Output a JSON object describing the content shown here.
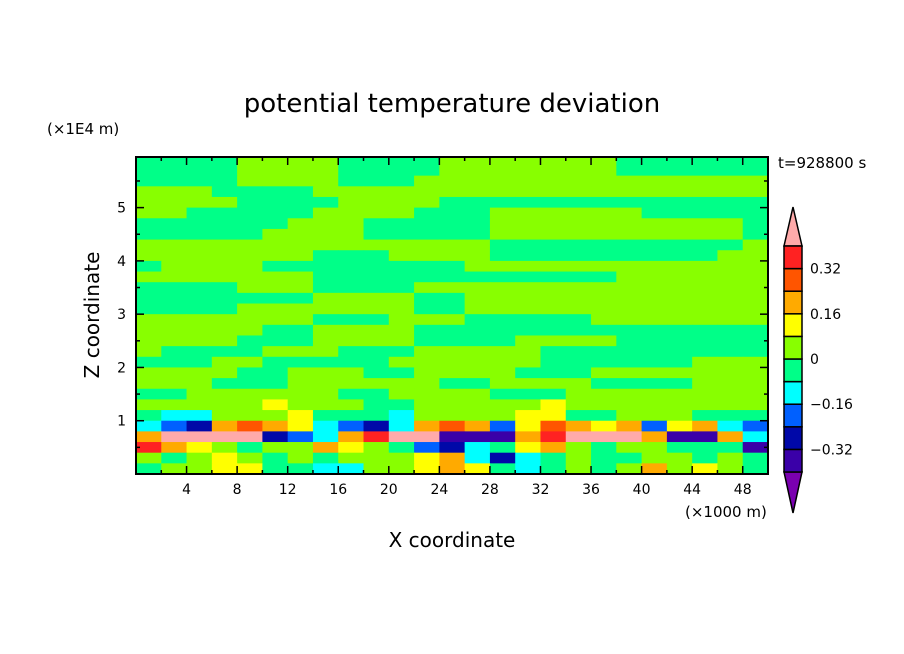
{
  "chart_data": {
    "type": "heatmap",
    "title": "potential temperature deviation",
    "xlabel": "X coordinate",
    "ylabel": "Z coordinate",
    "x_unit": "(×1000 m)",
    "y_unit": "(×1E4 m)",
    "time_label": "t=928800 s",
    "xlim": [
      0,
      50
    ],
    "ylim": [
      0,
      5.95
    ],
    "x_ticks": [
      4,
      8,
      12,
      16,
      20,
      24,
      28,
      32,
      36,
      40,
      44,
      48
    ],
    "y_ticks": [
      1,
      2,
      3,
      4,
      5
    ],
    "colorbar": {
      "levels": [
        -0.4,
        -0.32,
        -0.24,
        -0.16,
        -0.08,
        0,
        0.08,
        0.16,
        0.24,
        0.32,
        0.4
      ],
      "tick_labels": [
        "0.32",
        "0.16",
        "0",
        "−0.16",
        "−0.32"
      ],
      "tick_values": [
        0.32,
        0.16,
        0,
        -0.16,
        -0.32
      ],
      "colors": [
        "#7a00b0",
        "#3a00a8",
        "#0008a8",
        "#0060ff",
        "#00ffff",
        "#00ff88",
        "#88ff00",
        "#ffff00",
        "#ffaa00",
        "#ff5500",
        "#ff2222",
        "#ffaaaa"
      ],
      "extend": "both"
    },
    "x": [
      1,
      3,
      5,
      7,
      9,
      11,
      13,
      15,
      17,
      19,
      21,
      23,
      25,
      27,
      29,
      31,
      33,
      35,
      37,
      39,
      41,
      43,
      45,
      47,
      49
    ],
    "z": [
      5.9,
      5.7,
      5.5,
      5.3,
      5.1,
      4.9,
      4.7,
      4.5,
      4.3,
      4.1,
      3.9,
      3.7,
      3.5,
      3.3,
      3.1,
      2.9,
      2.7,
      2.5,
      2.3,
      2.1,
      1.9,
      1.7,
      1.5,
      1.3,
      1.1,
      0.9,
      0.7,
      0.5,
      0.3,
      0.1
    ],
    "values": [
      [
        -0.04,
        -0.04,
        -0.04,
        -0.04,
        0.04,
        0.04,
        0.04,
        0.04,
        -0.04,
        -0.04,
        -0.04,
        -0.04,
        0.04,
        0.04,
        0.04,
        0.04,
        0.04,
        0.04,
        0.04,
        -0.04,
        -0.04,
        -0.04,
        -0.04,
        -0.04,
        -0.04
      ],
      [
        -0.04,
        -0.04,
        -0.04,
        -0.04,
        0.04,
        0.04,
        0.04,
        0.04,
        -0.04,
        -0.04,
        -0.04,
        -0.04,
        0.04,
        0.04,
        0.04,
        0.04,
        0.04,
        0.04,
        0.04,
        -0.04,
        -0.04,
        -0.04,
        -0.04,
        -0.04,
        -0.04
      ],
      [
        -0.04,
        -0.04,
        -0.04,
        -0.04,
        0.04,
        0.04,
        0.04,
        0.04,
        -0.04,
        -0.04,
        -0.04,
        0.04,
        0.04,
        0.04,
        0.04,
        0.04,
        0.04,
        0.04,
        0.04,
        0.04,
        0.04,
        0.04,
        0.04,
        0.04,
        0.04
      ],
      [
        0.04,
        0.04,
        0.04,
        -0.04,
        -0.04,
        -0.04,
        -0.04,
        0.04,
        0.04,
        0.04,
        0.04,
        0.04,
        0.04,
        0.04,
        0.04,
        0.04,
        0.04,
        0.04,
        0.04,
        0.04,
        0.04,
        0.04,
        0.04,
        0.04,
        0.04
      ],
      [
        0.04,
        0.04,
        0.04,
        0.04,
        -0.04,
        -0.04,
        -0.04,
        -0.04,
        0.04,
        0.04,
        0.04,
        0.04,
        -0.04,
        -0.04,
        -0.04,
        -0.04,
        -0.04,
        -0.04,
        -0.04,
        -0.04,
        -0.04,
        -0.04,
        -0.04,
        -0.04,
        -0.04
      ],
      [
        0.04,
        0.04,
        -0.04,
        -0.04,
        -0.04,
        -0.04,
        -0.04,
        0.04,
        0.04,
        0.04,
        0.04,
        -0.04,
        -0.04,
        -0.04,
        0.04,
        0.04,
        0.04,
        0.04,
        0.04,
        0.04,
        -0.04,
        -0.04,
        -0.04,
        -0.04,
        -0.04
      ],
      [
        -0.04,
        -0.04,
        -0.04,
        -0.04,
        -0.04,
        -0.04,
        0.04,
        0.04,
        0.04,
        -0.04,
        -0.04,
        -0.04,
        -0.04,
        -0.04,
        0.04,
        0.04,
        0.04,
        0.04,
        0.04,
        0.04,
        0.04,
        0.04,
        0.04,
        0.04,
        -0.04
      ],
      [
        -0.04,
        -0.04,
        -0.04,
        -0.04,
        -0.04,
        0.04,
        0.04,
        0.04,
        0.04,
        -0.04,
        -0.04,
        -0.04,
        -0.04,
        -0.04,
        0.04,
        0.04,
        0.04,
        0.04,
        0.04,
        0.04,
        0.04,
        0.04,
        0.04,
        0.04,
        -0.04
      ],
      [
        0.04,
        0.04,
        0.04,
        0.04,
        0.04,
        0.04,
        0.04,
        0.04,
        0.04,
        0.04,
        0.04,
        0.04,
        0.04,
        0.04,
        -0.04,
        -0.04,
        -0.04,
        -0.04,
        -0.04,
        -0.04,
        -0.04,
        -0.04,
        -0.04,
        -0.04,
        0.04
      ],
      [
        0.04,
        0.04,
        0.04,
        0.04,
        0.04,
        0.04,
        0.04,
        -0.04,
        -0.04,
        -0.04,
        0.04,
        0.04,
        0.04,
        0.04,
        -0.04,
        -0.04,
        -0.04,
        -0.04,
        -0.04,
        -0.04,
        -0.04,
        -0.04,
        -0.04,
        0.04,
        0.04
      ],
      [
        -0.04,
        0.04,
        0.04,
        0.04,
        0.04,
        -0.04,
        -0.04,
        -0.04,
        -0.04,
        -0.04,
        -0.04,
        -0.04,
        -0.04,
        0.04,
        0.04,
        0.04,
        0.04,
        0.04,
        0.04,
        0.04,
        0.04,
        0.04,
        0.04,
        0.04,
        0.04
      ],
      [
        0.04,
        0.04,
        0.04,
        0.04,
        0.04,
        0.04,
        0.04,
        -0.04,
        -0.04,
        -0.04,
        -0.04,
        -0.04,
        -0.04,
        -0.04,
        -0.04,
        -0.04,
        -0.04,
        -0.04,
        -0.04,
        0.04,
        0.04,
        0.04,
        0.04,
        0.04,
        0.04
      ],
      [
        -0.04,
        -0.04,
        -0.04,
        -0.04,
        0.04,
        0.04,
        0.04,
        -0.04,
        -0.04,
        -0.04,
        -0.04,
        0.04,
        0.04,
        0.04,
        0.04,
        0.04,
        0.04,
        0.04,
        0.04,
        0.04,
        0.04,
        0.04,
        0.04,
        0.04,
        0.04
      ],
      [
        -0.04,
        -0.04,
        -0.04,
        -0.04,
        -0.04,
        -0.04,
        -0.04,
        0.04,
        0.04,
        0.04,
        0.04,
        -0.04,
        -0.04,
        0.04,
        0.04,
        0.04,
        0.04,
        0.04,
        0.04,
        0.04,
        0.04,
        0.04,
        0.04,
        0.04,
        0.04
      ],
      [
        -0.04,
        -0.04,
        -0.04,
        -0.04,
        0.04,
        0.04,
        0.04,
        0.04,
        0.04,
        0.04,
        0.04,
        -0.04,
        -0.04,
        0.04,
        0.04,
        0.04,
        0.04,
        0.04,
        0.04,
        0.04,
        0.04,
        0.04,
        0.04,
        0.04,
        0.04
      ],
      [
        0.04,
        0.04,
        0.04,
        0.04,
        0.04,
        0.04,
        0.04,
        -0.04,
        -0.04,
        -0.04,
        0.04,
        0.04,
        0.04,
        -0.04,
        -0.04,
        -0.04,
        -0.04,
        -0.04,
        0.04,
        0.04,
        0.04,
        0.04,
        0.04,
        0.04,
        0.04
      ],
      [
        0.04,
        0.04,
        0.04,
        0.04,
        0.04,
        -0.04,
        -0.04,
        0.04,
        0.04,
        0.04,
        0.04,
        -0.04,
        -0.04,
        -0.04,
        -0.04,
        -0.04,
        -0.04,
        -0.04,
        -0.04,
        -0.04,
        -0.04,
        -0.04,
        -0.04,
        -0.04,
        -0.04
      ],
      [
        0.04,
        0.04,
        0.04,
        0.04,
        -0.04,
        -0.04,
        -0.04,
        0.04,
        0.04,
        0.04,
        0.04,
        -0.04,
        -0.04,
        -0.04,
        -0.04,
        0.04,
        0.04,
        0.04,
        0.04,
        -0.04,
        -0.04,
        -0.04,
        -0.04,
        -0.04,
        -0.04
      ],
      [
        0.04,
        -0.04,
        -0.04,
        -0.04,
        -0.04,
        0.04,
        0.04,
        0.04,
        -0.04,
        -0.04,
        -0.04,
        0.04,
        0.04,
        0.04,
        0.04,
        0.04,
        -0.04,
        -0.04,
        -0.04,
        -0.04,
        -0.04,
        -0.04,
        -0.04,
        -0.04,
        -0.04
      ],
      [
        -0.04,
        -0.04,
        -0.04,
        0.04,
        0.04,
        -0.04,
        -0.04,
        -0.04,
        -0.04,
        -0.04,
        0.04,
        0.04,
        0.04,
        0.04,
        0.04,
        0.04,
        -0.04,
        -0.04,
        -0.04,
        -0.04,
        -0.04,
        -0.04,
        0.04,
        0.04,
        0.04
      ],
      [
        0.04,
        0.04,
        0.04,
        0.04,
        -0.04,
        -0.04,
        0.04,
        0.04,
        0.04,
        -0.04,
        -0.04,
        0.04,
        0.04,
        0.04,
        0.04,
        -0.04,
        -0.04,
        -0.04,
        0.04,
        0.04,
        0.04,
        0.04,
        0.04,
        0.04,
        0.04
      ],
      [
        0.04,
        0.04,
        0.04,
        -0.04,
        -0.04,
        -0.04,
        0.04,
        0.04,
        0.04,
        0.04,
        0.04,
        0.04,
        -0.04,
        -0.04,
        0.04,
        0.04,
        0.04,
        0.04,
        -0.04,
        -0.04,
        -0.04,
        -0.04,
        0.04,
        0.04,
        0.04
      ],
      [
        -0.04,
        -0.04,
        0.04,
        0.04,
        0.04,
        0.04,
        0.04,
        0.04,
        -0.04,
        -0.04,
        0.04,
        0.04,
        0.04,
        0.04,
        -0.04,
        -0.04,
        -0.04,
        0.04,
        0.04,
        0.04,
        0.04,
        0.04,
        0.04,
        0.04,
        0.04
      ],
      [
        0.04,
        0.04,
        0.04,
        0.04,
        0.04,
        0.12,
        0.04,
        0.04,
        0.04,
        -0.04,
        -0.04,
        0.04,
        0.04,
        0.04,
        0.04,
        0.04,
        0.12,
        0.04,
        0.04,
        0.04,
        0.04,
        0.04,
        0.04,
        0.04,
        0.04
      ],
      [
        -0.04,
        -0.12,
        -0.12,
        0.04,
        0.04,
        0.04,
        0.12,
        -0.04,
        -0.04,
        -0.04,
        -0.12,
        0.04,
        0.04,
        0.04,
        0.04,
        0.12,
        0.12,
        -0.04,
        -0.04,
        0.04,
        0.04,
        0.04,
        -0.04,
        -0.04,
        -0.04
      ],
      [
        -0.12,
        -0.2,
        -0.28,
        0.2,
        0.28,
        0.2,
        0.12,
        -0.12,
        -0.2,
        -0.28,
        -0.12,
        0.2,
        0.28,
        0.2,
        -0.2,
        0.12,
        0.28,
        0.2,
        0.12,
        0.2,
        -0.2,
        0.12,
        0.2,
        -0.12,
        -0.2
      ],
      [
        0.2,
        0.44,
        0.44,
        0.44,
        0.44,
        -0.28,
        -0.2,
        -0.12,
        0.2,
        0.36,
        0.44,
        0.44,
        -0.36,
        -0.36,
        -0.36,
        0.2,
        0.36,
        0.44,
        0.44,
        0.44,
        0.2,
        -0.36,
        -0.36,
        0.2,
        -0.12
      ],
      [
        0.36,
        0.2,
        0.12,
        0.04,
        -0.04,
        0.04,
        0.04,
        0.2,
        0.12,
        0.04,
        -0.04,
        -0.2,
        -0.28,
        -0.12,
        -0.04,
        0.12,
        0.2,
        0.04,
        -0.04,
        0.04,
        0.04,
        -0.04,
        -0.04,
        -0.04,
        -0.36
      ],
      [
        0.04,
        -0.04,
        0.04,
        0.12,
        0.04,
        -0.04,
        0.04,
        -0.04,
        0.04,
        0.04,
        0.04,
        0.12,
        0.2,
        -0.12,
        -0.28,
        -0.12,
        -0.04,
        0.04,
        -0.04,
        -0.04,
        0.04,
        0.04,
        -0.04,
        0.04,
        -0.04
      ],
      [
        -0.04,
        0.04,
        0.04,
        0.12,
        0.12,
        -0.04,
        -0.04,
        -0.12,
        -0.12,
        0.04,
        0.04,
        0.12,
        0.2,
        0.12,
        -0.04,
        -0.12,
        -0.04,
        0.04,
        -0.04,
        0.04,
        0.2,
        0.04,
        0.12,
        0.04,
        -0.04
      ]
    ]
  }
}
